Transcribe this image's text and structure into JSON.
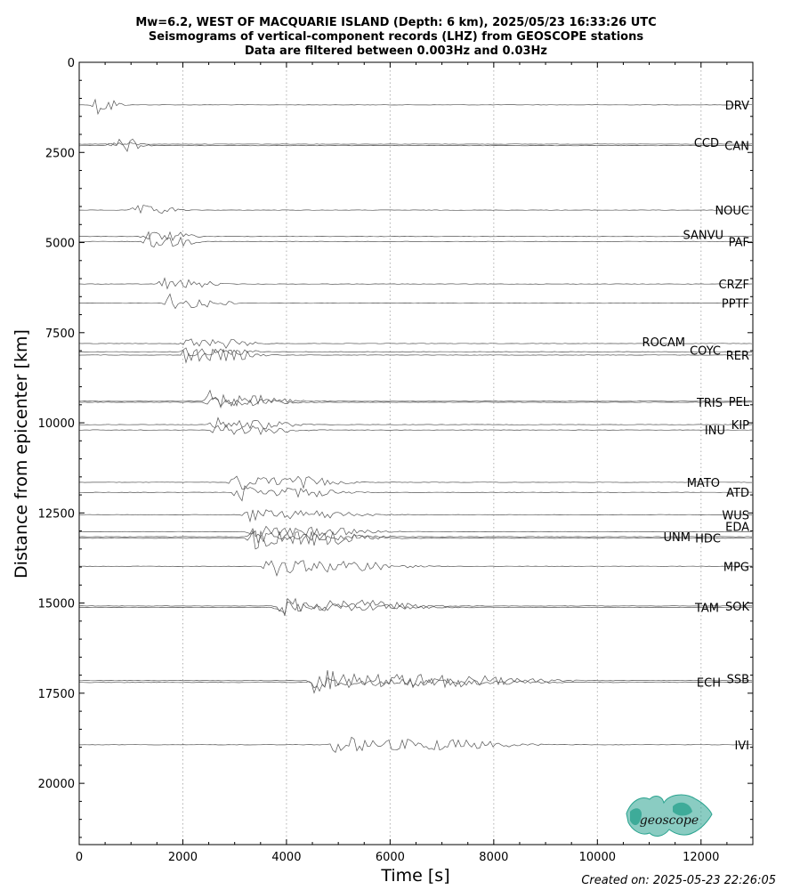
{
  "titles": [
    "Mw=6.2, WEST OF MACQUARIE ISLAND (Depth: 6 km), 2025/05/23 16:33:26 UTC",
    "Seismograms of vertical-component records (LHZ) from GEOSCOPE stations",
    "Data are filtered between 0.003Hz and 0.03Hz"
  ],
  "footer": "Created on: 2025-05-23 22:26:05",
  "logo_text": "geoscope",
  "colors": {
    "trace": "#555555",
    "grid": "#b0b0b0",
    "logo": "#2aa38f"
  },
  "chart_data": {
    "type": "line",
    "xlabel": "Time [s]",
    "ylabel": "Distance from epicenter [km]",
    "xlim": [
      0,
      13000
    ],
    "ylim": [
      0,
      21700
    ],
    "y_inverted": true,
    "xticks": [
      0,
      2000,
      4000,
      6000,
      8000,
      10000,
      12000
    ],
    "yticks": [
      0,
      2500,
      5000,
      7500,
      10000,
      12500,
      15000,
      17500,
      20000
    ],
    "grid_x": true,
    "stations": [
      {
        "name": "DRV",
        "distance": 1180,
        "arrival": 330,
        "amp": 17,
        "dur": 200
      },
      {
        "name": "CAN",
        "distance": 2310,
        "arrival": 650,
        "amp": 16,
        "dur": 260
      },
      {
        "name": "CCD",
        "distance": 2270,
        "arrival": 640,
        "amp": 4,
        "dur": 260
      },
      {
        "name": "NOUC",
        "distance": 4100,
        "arrival": 1100,
        "amp": 10,
        "dur": 350
      },
      {
        "name": "SANVU",
        "distance": 4830,
        "arrival": 1300,
        "amp": 10,
        "dur": 400
      },
      {
        "name": "PAF",
        "distance": 4970,
        "arrival": 1320,
        "amp": 12,
        "dur": 400
      },
      {
        "name": "CRZF",
        "distance": 6150,
        "arrival": 1600,
        "amp": 10,
        "dur": 450
      },
      {
        "name": "PPTF",
        "distance": 6680,
        "arrival": 1750,
        "amp": 12,
        "dur": 500
      },
      {
        "name": "ROCAM",
        "distance": 7800,
        "arrival": 2000,
        "amp": 10,
        "dur": 600
      },
      {
        "name": "RER",
        "distance": 8120,
        "arrival": 2050,
        "amp": 14,
        "dur": 600
      },
      {
        "name": "COYC",
        "distance": 8030,
        "arrival": 2050,
        "amp": 8,
        "dur": 600
      },
      {
        "name": "PEL",
        "distance": 9400,
        "arrival": 2500,
        "amp": 13,
        "dur": 700
      },
      {
        "name": "TRIS",
        "distance": 9430,
        "arrival": 2520,
        "amp": 8,
        "dur": 700
      },
      {
        "name": "KIP",
        "distance": 10050,
        "arrival": 2600,
        "amp": 10,
        "dur": 700
      },
      {
        "name": "INU",
        "distance": 10200,
        "arrival": 2650,
        "amp": 10,
        "dur": 700
      },
      {
        "name": "MATO",
        "distance": 11650,
        "arrival": 3000,
        "amp": 13,
        "dur": 900
      },
      {
        "name": "ATD",
        "distance": 11930,
        "arrival": 3050,
        "amp": 11,
        "dur": 900
      },
      {
        "name": "WUS",
        "distance": 12550,
        "arrival": 3250,
        "amp": 10,
        "dur": 1000
      },
      {
        "name": "EDA",
        "distance": 13020,
        "arrival": 3320,
        "amp": 10,
        "dur": 1000
      },
      {
        "name": "HDC",
        "distance": 13200,
        "arrival": 3350,
        "amp": 16,
        "dur": 1000
      },
      {
        "name": "UNM",
        "distance": 13160,
        "arrival": 3350,
        "amp": 8,
        "dur": 1000
      },
      {
        "name": "MPG",
        "distance": 13980,
        "arrival": 3650,
        "amp": 14,
        "dur": 1100
      },
      {
        "name": "SOK",
        "distance": 15080,
        "arrival": 3850,
        "amp": 13,
        "dur": 1200
      },
      {
        "name": "TAM",
        "distance": 15120,
        "arrival": 3860,
        "amp": 8,
        "dur": 1200
      },
      {
        "name": "SSB",
        "distance": 17150,
        "arrival": 4500,
        "amp": 16,
        "dur": 1800
      },
      {
        "name": "ECH",
        "distance": 17200,
        "arrival": 4520,
        "amp": 8,
        "dur": 1800
      },
      {
        "name": "IVI",
        "distance": 18930,
        "arrival": 4900,
        "amp": 13,
        "dur": 1500
      }
    ]
  }
}
